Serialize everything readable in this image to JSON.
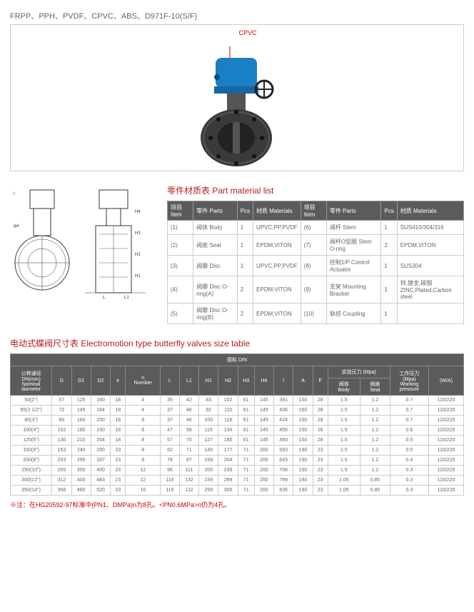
{
  "title_line": "FRPP、PPH、PVDF、CPVC、ABS、D971F-10(S/F)",
  "cpvc_label": "CPVC",
  "material_header": "零件材质表 Part material list",
  "material_cols": {
    "item": "项目\nItem",
    "parts": "零件 Parts",
    "pcs": "Pcs",
    "materials": "材质 Materials"
  },
  "material_rows_left": [
    {
      "n": "(1)",
      "p": "阀体 Body",
      "pc": "1",
      "m": "UPVC,PP,PVDF"
    },
    {
      "n": "(2)",
      "p": "阀座 Seat",
      "pc": "1",
      "m": "EPDM,VITON"
    },
    {
      "n": "(3)",
      "p": "阀瓣 Disc",
      "pc": "1",
      "m": "UPVC,PP,PVDF"
    },
    {
      "n": "(4)",
      "p": "阀瓣 Disc O-ring(A)",
      "pc": "2",
      "m": "EPDM,VITON"
    },
    {
      "n": "(5)",
      "p": "阀瓣 Disc O-ring(B)",
      "pc": "2",
      "m": "EPDM,VITON"
    }
  ],
  "material_rows_right": [
    {
      "n": "(6)",
      "p": "阀杆 Stem",
      "pc": "1",
      "m": "SUS410/304/316"
    },
    {
      "n": "(7)",
      "p": "阀杆O型圈 Stem O-ring",
      "pc": "2",
      "m": "EPDM,VITON"
    },
    {
      "n": "(8)",
      "p": "控制1/P Control Actuator",
      "pc": "1",
      "m": "SUS304"
    },
    {
      "n": "(9)",
      "p": "支架 Mounting Bracket",
      "pc": "1",
      "m": "锌,镀金,碳钢\nZINC,Plated,Carbon steel"
    },
    {
      "n": "(10)",
      "p": "联结 Coupling",
      "pc": "1",
      "m": ""
    }
  ],
  "size_header": "电动式蝶阀尺寸表 Electromotion type butterfly valves size table",
  "size_top": "德标 DIN",
  "size_cols": [
    "公称通径\nDN(mm)\nNominal\ndiameter",
    "D",
    "D1",
    "D2",
    "e",
    "n\nNumber",
    "L",
    "L1",
    "H1",
    "H2",
    "H3",
    "H4",
    "I",
    "A",
    "F"
  ],
  "press_group": "实验压力 (Mpa)",
  "press_body": "阀体\nBody",
  "press_seat": "阀座\nSeat",
  "work_press": "工作压力\n(Mpa)\nWorking\npressure",
  "wa": "(W/A)",
  "size_rows": [
    [
      "50(2\")",
      "57",
      "125",
      "160",
      "18",
      "4",
      "35",
      "42",
      "83",
      "102",
      "61",
      "145",
      "391",
      "150",
      "28",
      "1.5",
      "1.2",
      "0.7",
      "110/220"
    ],
    [
      "65(2 1/2\")",
      "72",
      "145",
      "184",
      "18",
      "4",
      "37",
      "46",
      "92",
      "110",
      "61",
      "145",
      "406",
      "150",
      "28",
      "1.5",
      "1.2",
      "0.7",
      "110/220"
    ],
    [
      "80(3\")",
      "80",
      "160",
      "200",
      "18",
      "8",
      "37",
      "46",
      "100",
      "118",
      "61",
      "145",
      "424",
      "150",
      "28",
      "1.5",
      "1.2",
      "0.7",
      "110/220"
    ],
    [
      "100(4\")",
      "102",
      "180",
      "230",
      "18",
      "8",
      "47",
      "56",
      "115",
      "134",
      "61",
      "145",
      "455",
      "150",
      "28",
      "1.5",
      "1.2",
      "0.6",
      "110/220"
    ],
    [
      "125(5\")",
      "130",
      "210",
      "254",
      "18",
      "8",
      "57",
      "70",
      "127",
      "160",
      "61",
      "145",
      "493",
      "150",
      "28",
      "1.5",
      "1.2",
      "0.5",
      "110/220"
    ],
    [
      "150(6\")",
      "153",
      "240",
      "290",
      "23",
      "8",
      "62",
      "71",
      "145",
      "177",
      "71",
      "200",
      "593",
      "190",
      "23",
      "1.5",
      "1.2",
      "0.5",
      "110/220"
    ],
    [
      "200(8\")",
      "203",
      "295",
      "337",
      "23",
      "8",
      "76",
      "87",
      "168",
      "204",
      "71",
      "200",
      "643",
      "190",
      "23",
      "1.5",
      "1.2",
      "0.4",
      "110/220"
    ],
    [
      "250(10\")",
      "255",
      "350",
      "400",
      "23",
      "12",
      "96",
      "111",
      "200",
      "235",
      "71",
      "200",
      "706",
      "190",
      "23",
      "1.5",
      "1.2",
      "0.3",
      "110/220"
    ],
    [
      "300(12\")",
      "312",
      "400",
      "483",
      "23",
      "12",
      "116",
      "132",
      "239",
      "289",
      "71",
      "200",
      "799",
      "190",
      "23",
      "1.05",
      "0.85",
      "0.3",
      "110/220"
    ],
    [
      "350(14\")",
      "358",
      "460",
      "520",
      "23",
      "16",
      "116",
      "132",
      "259",
      "305",
      "71",
      "200",
      "835",
      "190",
      "23",
      "1.05",
      "0.85",
      "0.3",
      "110/220"
    ]
  ],
  "footnote": "※注：在HG20592-97标准中(PN1、DMPa)n为8孔。<PN0.6MPa>n仍为4孔。",
  "colors": {
    "accent": "#b51c1c",
    "dark_header": "#5b5b5b",
    "actuator": "#1a7fc4",
    "valve_body": "#3a3a3a"
  }
}
